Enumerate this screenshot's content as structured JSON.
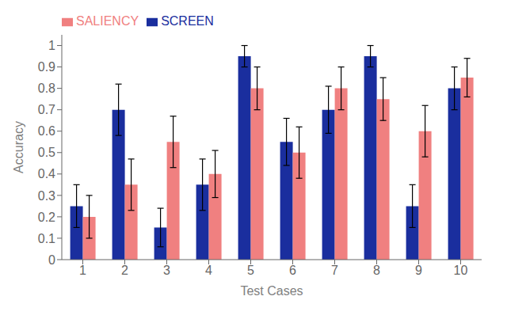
{
  "chart_data": {
    "type": "bar",
    "xlabel": "Test Cases",
    "ylabel": "Accuracy",
    "categories": [
      "1",
      "2",
      "3",
      "4",
      "5",
      "6",
      "7",
      "8",
      "9",
      "10"
    ],
    "series": [
      {
        "name": "SCREEN",
        "color": "#1a2e9e",
        "values": [
          0.25,
          0.7,
          0.15,
          0.35,
          0.95,
          0.55,
          0.7,
          0.95,
          0.25,
          0.8
        ],
        "errors": [
          0.1,
          0.12,
          0.09,
          0.12,
          0.05,
          0.11,
          0.11,
          0.05,
          0.1,
          0.1
        ]
      },
      {
        "name": "SALIENCY",
        "color": "#f08080",
        "values": [
          0.2,
          0.35,
          0.55,
          0.4,
          0.8,
          0.5,
          0.8,
          0.75,
          0.6,
          0.85
        ],
        "errors": [
          0.1,
          0.12,
          0.12,
          0.11,
          0.1,
          0.12,
          0.1,
          0.1,
          0.12,
          0.09
        ]
      }
    ],
    "ylim": [
      0,
      1.05
    ],
    "yticks": [
      0,
      0.1,
      0.2,
      0.3,
      0.4,
      0.5,
      0.6,
      0.7,
      0.8,
      0.9,
      1
    ],
    "grid": false,
    "legend": "upper left"
  }
}
